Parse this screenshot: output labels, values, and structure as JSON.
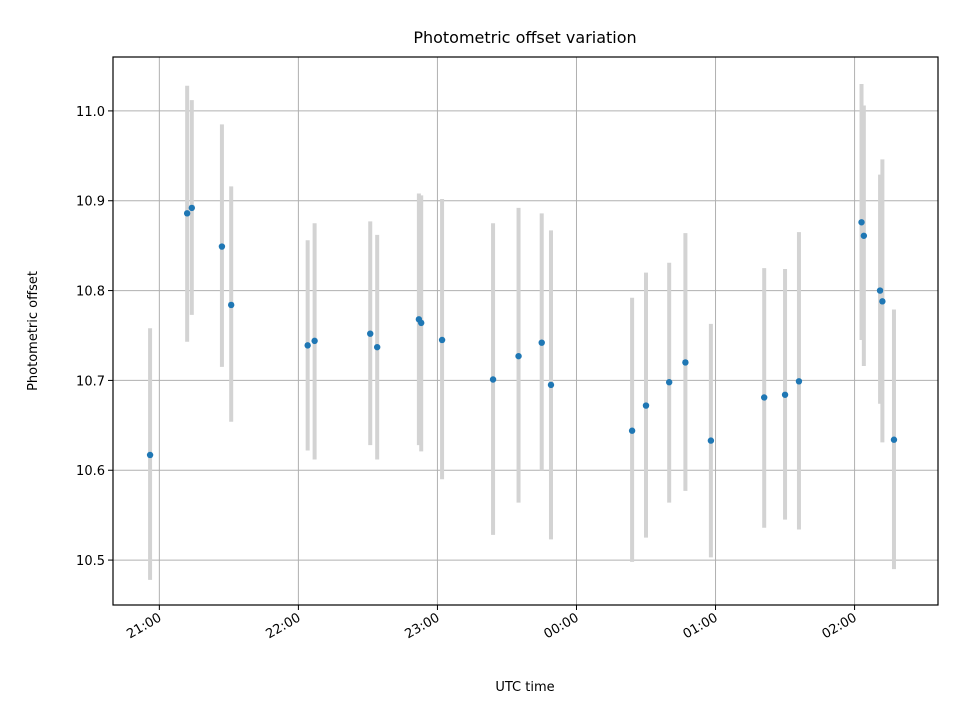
{
  "chart_data": {
    "type": "scatter",
    "title": "Photometric offset variation",
    "xlabel": "UTC time",
    "ylabel": "Photometric offset",
    "x_unit": "time of day (UTC)",
    "xlim": [
      "20:40",
      "02:36"
    ],
    "ylim": [
      10.45,
      11.06
    ],
    "x_ticks": [
      "21:00",
      "22:00",
      "23:00",
      "00:00",
      "01:00",
      "02:00"
    ],
    "y_ticks": [
      10.5,
      10.6,
      10.7,
      10.8,
      10.9,
      11.0
    ],
    "grid": true,
    "legend": "none",
    "colors": {
      "points": "#1f77b4",
      "error_bars": "#d3d3d3"
    },
    "series": [
      {
        "points": [
          {
            "x": "20:56",
            "y": 10.617,
            "low": 10.478,
            "high": 10.758
          },
          {
            "x": "21:12",
            "y": 10.886,
            "low": 10.743,
            "high": 11.028
          },
          {
            "x": "21:14",
            "y": 10.892,
            "low": 10.773,
            "high": 11.012
          },
          {
            "x": "21:27",
            "y": 10.849,
            "low": 10.715,
            "high": 10.985
          },
          {
            "x": "21:31",
            "y": 10.784,
            "low": 10.654,
            "high": 10.916
          },
          {
            "x": "22:04",
            "y": 10.739,
            "low": 10.622,
            "high": 10.856
          },
          {
            "x": "22:07",
            "y": 10.744,
            "low": 10.612,
            "high": 10.875
          },
          {
            "x": "22:31",
            "y": 10.752,
            "low": 10.628,
            "high": 10.877
          },
          {
            "x": "22:34",
            "y": 10.737,
            "low": 10.612,
            "high": 10.862
          },
          {
            "x": "22:52",
            "y": 10.768,
            "low": 10.628,
            "high": 10.908
          },
          {
            "x": "22:53",
            "y": 10.764,
            "low": 10.621,
            "high": 10.906
          },
          {
            "x": "23:02",
            "y": 10.745,
            "low": 10.59,
            "high": 10.902
          },
          {
            "x": "23:24",
            "y": 10.701,
            "low": 10.528,
            "high": 10.875
          },
          {
            "x": "23:35",
            "y": 10.727,
            "low": 10.564,
            "high": 10.892
          },
          {
            "x": "23:45",
            "y": 10.742,
            "low": 10.6,
            "high": 10.886
          },
          {
            "x": "23:49",
            "y": 10.695,
            "low": 10.523,
            "high": 10.867
          },
          {
            "x": "00:24",
            "y": 10.644,
            "low": 10.498,
            "high": 10.792
          },
          {
            "x": "00:30",
            "y": 10.672,
            "low": 10.525,
            "high": 10.82
          },
          {
            "x": "00:40",
            "y": 10.698,
            "low": 10.564,
            "high": 10.831
          },
          {
            "x": "00:47",
            "y": 10.72,
            "low": 10.577,
            "high": 10.864
          },
          {
            "x": "00:58",
            "y": 10.633,
            "low": 10.503,
            "high": 10.763
          },
          {
            "x": "01:21",
            "y": 10.681,
            "low": 10.536,
            "high": 10.825
          },
          {
            "x": "01:30",
            "y": 10.684,
            "low": 10.545,
            "high": 10.824
          },
          {
            "x": "01:36",
            "y": 10.699,
            "low": 10.534,
            "high": 10.865
          },
          {
            "x": "02:03",
            "y": 10.876,
            "low": 10.745,
            "high": 11.03
          },
          {
            "x": "02:04",
            "y": 10.861,
            "low": 10.716,
            "high": 11.006
          },
          {
            "x": "02:11",
            "y": 10.8,
            "low": 10.674,
            "high": 10.929
          },
          {
            "x": "02:12",
            "y": 10.788,
            "low": 10.631,
            "high": 10.946
          },
          {
            "x": "02:17",
            "y": 10.634,
            "low": 10.49,
            "high": 10.779
          }
        ]
      }
    ]
  }
}
